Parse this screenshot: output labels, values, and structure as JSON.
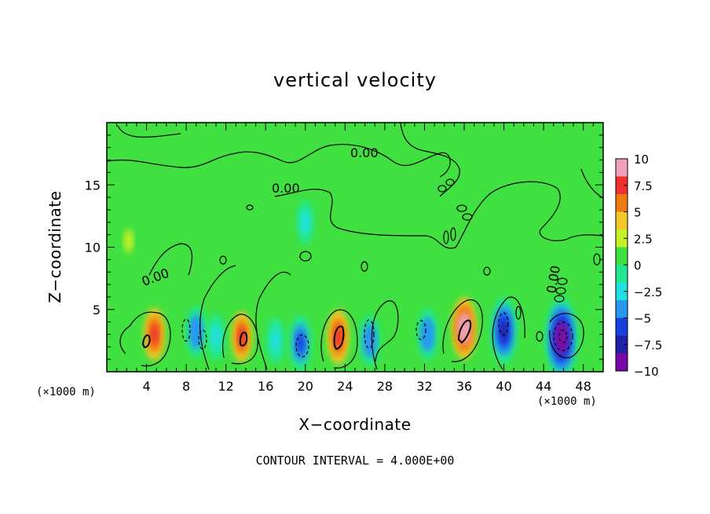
{
  "chart_data": {
    "type": "heatmap",
    "title": "vertical velocity",
    "xlabel": "X−coordinate",
    "ylabel": "Z−coordinate",
    "x_unit": "(×1000 m)",
    "x_ticks": [
      4,
      8,
      12,
      16,
      20,
      24,
      28,
      32,
      36,
      40,
      44,
      48
    ],
    "y_ticks": [
      5,
      10,
      15
    ],
    "xlim": [
      0,
      50
    ],
    "ylim": [
      0,
      20
    ],
    "colorbar": {
      "ticks": [
        "10",
        "7.5",
        "5",
        "2.5",
        "0",
        "−2.5",
        "−5",
        "−7.5",
        "−10"
      ],
      "range": [
        -10,
        10
      ],
      "colors": [
        "#f0a0b8",
        "#f03030",
        "#f07810",
        "#f0c828",
        "#c8f028",
        "#40e040",
        "#20e890",
        "#20e0e0",
        "#2898f0",
        "#1840e0",
        "#2020a8",
        "#7808a8"
      ]
    },
    "contour_label": "0.00",
    "contour_interval_text": "CONTOUR INTERVAL = 4.000E+00",
    "features": [
      {
        "x": 4.8,
        "z": 3.0,
        "value": 7.5
      },
      {
        "x": 9.0,
        "z": 3.2,
        "value": -4
      },
      {
        "x": 11.0,
        "z": 2.8,
        "value": -3
      },
      {
        "x": 13.6,
        "z": 2.8,
        "value": 7
      },
      {
        "x": 17.0,
        "z": 2.5,
        "value": -3
      },
      {
        "x": 19.5,
        "z": 2.3,
        "value": -5
      },
      {
        "x": 23.3,
        "z": 2.8,
        "value": 8
      },
      {
        "x": 26.5,
        "z": 2.5,
        "value": -4
      },
      {
        "x": 32.3,
        "z": 3.0,
        "value": -4
      },
      {
        "x": 36.0,
        "z": 3.5,
        "value": 9
      },
      {
        "x": 40.0,
        "z": 3.3,
        "value": -7
      },
      {
        "x": 45.8,
        "z": 2.7,
        "value": -10
      },
      {
        "x": 2.2,
        "z": 10.5,
        "value": 2.5
      },
      {
        "x": 20.0,
        "z": 12.0,
        "value": -2.5
      }
    ]
  }
}
